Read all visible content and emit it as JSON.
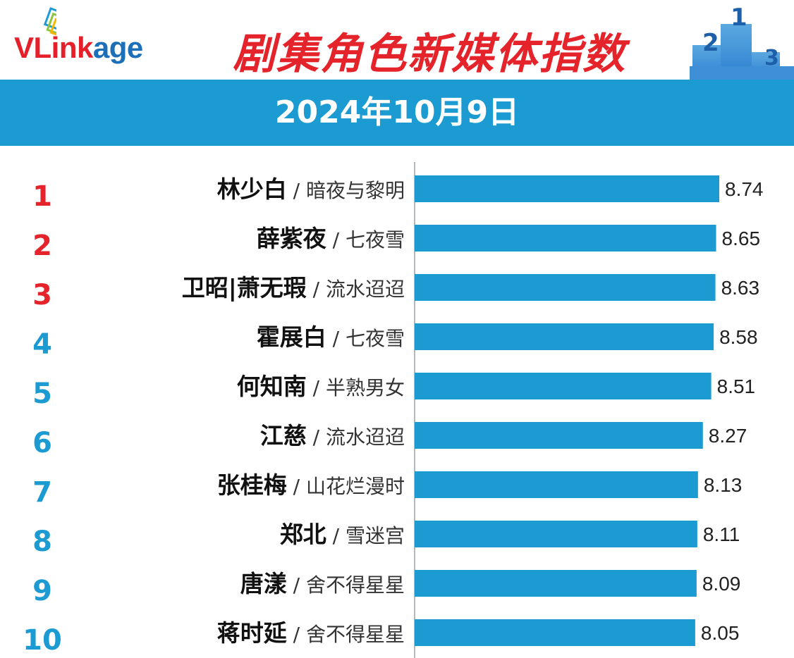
{
  "header": {
    "logo": "VLinkage",
    "title": "剧集角色新媒体指数",
    "date": "2024年10月9日"
  },
  "colors": {
    "bar": "#1b9bd1",
    "rank_top": "#e4232b",
    "rank_other": "#1b9bd1",
    "band": "#1b9bd1"
  },
  "chart_data": {
    "type": "bar",
    "orientation": "horizontal",
    "rows": [
      {
        "rank": "1",
        "role": "林少白",
        "drama": "暗夜与黎明",
        "value": 8.74,
        "value_label": "8.74"
      },
      {
        "rank": "2",
        "role": "薛紫夜",
        "drama": "七夜雪",
        "value": 8.65,
        "value_label": "8.65"
      },
      {
        "rank": "3",
        "role": "卫昭|萧无瑕",
        "drama": "流水迢迢",
        "value": 8.63,
        "value_label": "8.63"
      },
      {
        "rank": "4",
        "role": "霍展白",
        "drama": "七夜雪",
        "value": 8.58,
        "value_label": "8.58"
      },
      {
        "rank": "5",
        "role": "何知南",
        "drama": "半熟男女",
        "value": 8.51,
        "value_label": "8.51"
      },
      {
        "rank": "6",
        "role": "江慈",
        "drama": "流水迢迢",
        "value": 8.27,
        "value_label": "8.27"
      },
      {
        "rank": "7",
        "role": "张桂梅",
        "drama": "山花烂漫时",
        "value": 8.13,
        "value_label": "8.13"
      },
      {
        "rank": "8",
        "role": "郑北",
        "drama": "雪迷宫",
        "value": 8.11,
        "value_label": "8.11"
      },
      {
        "rank": "9",
        "role": "唐漾",
        "drama": "舍不得星星",
        "value": 8.09,
        "value_label": "8.09"
      },
      {
        "rank": "10",
        "role": "蒋时延",
        "drama": "舍不得星星",
        "value": 8.05,
        "value_label": "8.05"
      }
    ],
    "separator": "/",
    "grid": false
  }
}
